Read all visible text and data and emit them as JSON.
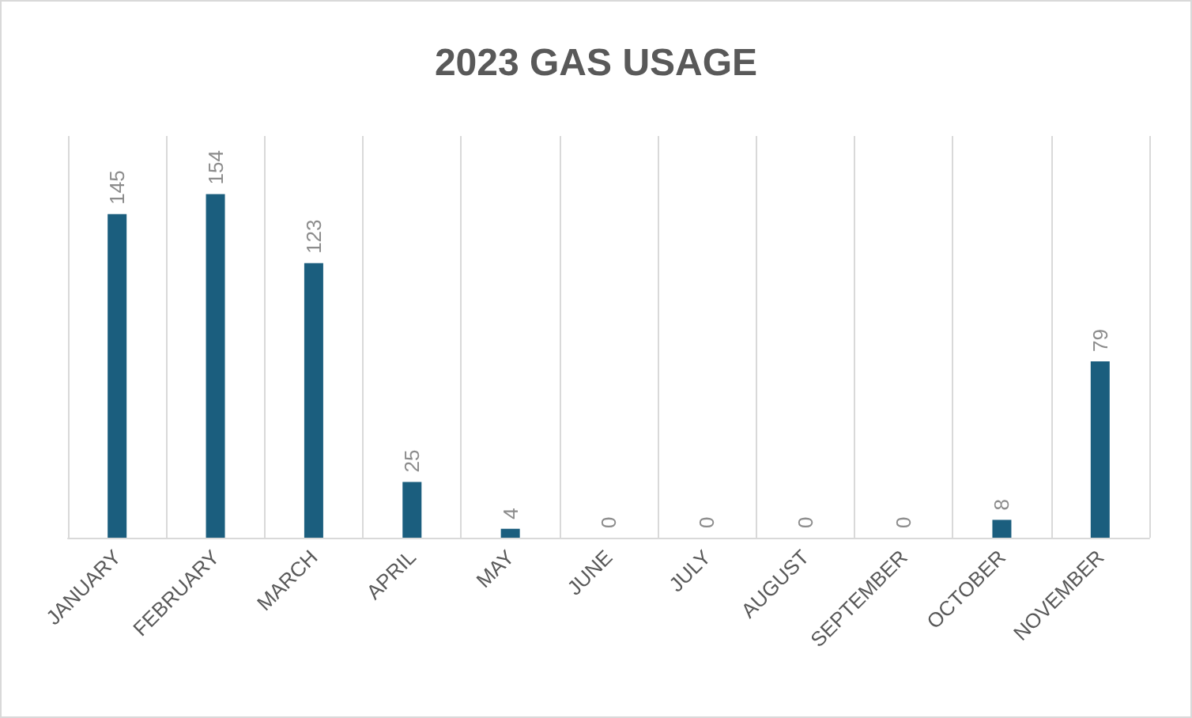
{
  "chart_data": {
    "type": "bar",
    "title": "2023 GAS USAGE",
    "categories": [
      "JANUARY",
      "FEBRUARY",
      "MARCH",
      "APRIL",
      "MAY",
      "JUNE",
      "JULY",
      "AUGUST",
      "SEPTEMBER",
      "OCTOBER",
      "NOVEMBER"
    ],
    "values": [
      145,
      154,
      123,
      25,
      4,
      0,
      0,
      0,
      0,
      8,
      79
    ],
    "color": "#1b5e7e",
    "data_labels": true,
    "grid": "x"
  }
}
